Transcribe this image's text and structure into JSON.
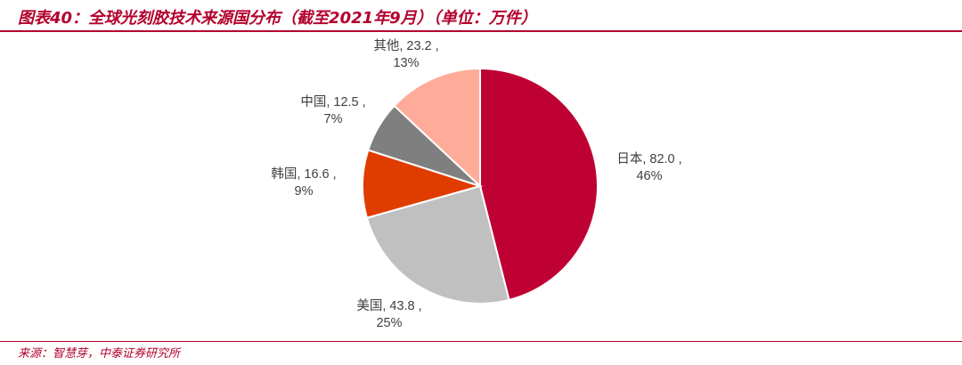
{
  "title": "图表40：全球光刻胶技术来源国分布（截至2021年9月）（单位：万件）",
  "source": "来源：智慧芽，中泰证券研究所",
  "chart_data": {
    "type": "pie",
    "start_angle_deg": 0,
    "direction": "clockwise",
    "slices": [
      {
        "name": "日本",
        "value": 82.0,
        "percent": "46%",
        "value_label": "日本, 82.0 ,",
        "color": "#bf0033"
      },
      {
        "name": "美国",
        "value": 43.8,
        "percent": "25%",
        "value_label": "美国, 43.8 ,",
        "color": "#c0c0c0"
      },
      {
        "name": "韩国",
        "value": 16.6,
        "percent": "9%",
        "value_label": "韩国, 16.6 ,",
        "color": "#e03c00"
      },
      {
        "name": "中国",
        "value": 12.5,
        "percent": "7%",
        "value_label": "中国, 12.5 ,",
        "color": "#7f7f7f"
      },
      {
        "name": "其他",
        "value": 23.2,
        "percent": "13%",
        "value_label": "其他, 23.2 ,",
        "color": "#ffab99"
      }
    ]
  }
}
